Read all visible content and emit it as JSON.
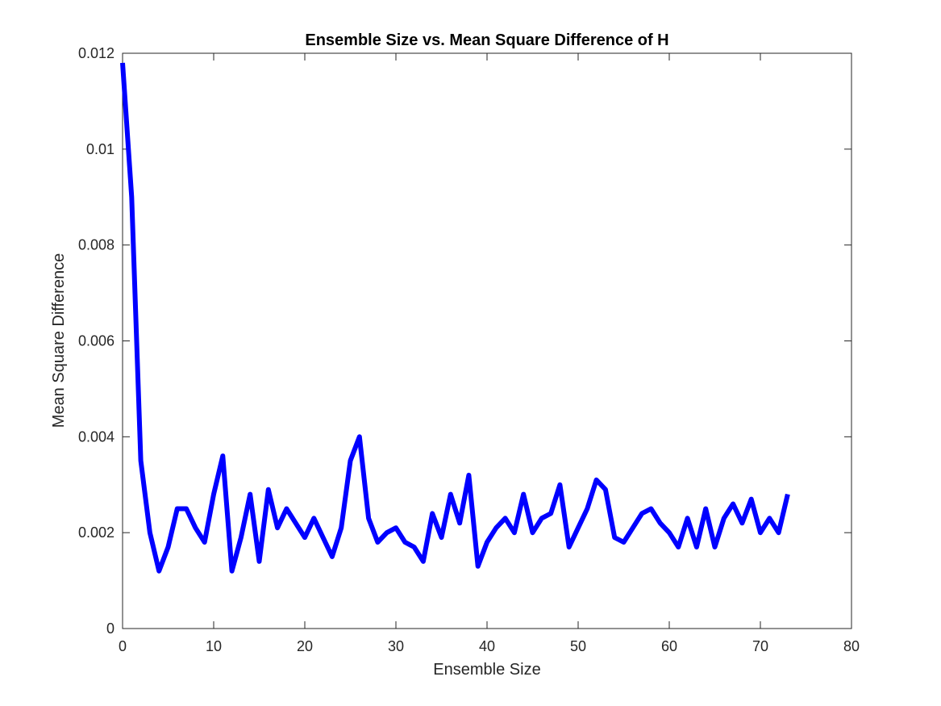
{
  "chart_data": {
    "type": "line",
    "title": "Ensemble Size vs. Mean Square Difference of H",
    "xlabel": "Ensemble Size",
    "ylabel": "Mean Square Difference",
    "xlim": [
      0,
      80
    ],
    "ylim": [
      0,
      0.012
    ],
    "xticks": [
      "0",
      "10",
      "20",
      "30",
      "40",
      "50",
      "60",
      "70",
      "80"
    ],
    "yticks": [
      "0",
      "0.002",
      "0.004",
      "0.006",
      "0.008",
      "0.01",
      "0.012"
    ],
    "grid": false,
    "series": [
      {
        "color": "#0000ff",
        "x": [
          0,
          1,
          2,
          3,
          4,
          5,
          6,
          7,
          8,
          9,
          10,
          11,
          12,
          13,
          14,
          15,
          16,
          17,
          18,
          19,
          20,
          21,
          22,
          23,
          24,
          25,
          26,
          27,
          28,
          29,
          30,
          31,
          32,
          33,
          34,
          35,
          36,
          37,
          38,
          39,
          40,
          41,
          42,
          43,
          44,
          45,
          46,
          47,
          48,
          49,
          50,
          51,
          52,
          53,
          54,
          55,
          56,
          57,
          58,
          59,
          60,
          61,
          62,
          63,
          64,
          65,
          66,
          67,
          68,
          69,
          70,
          71,
          72,
          73
        ],
        "y": [
          0.0118,
          0.009,
          0.0035,
          0.002,
          0.0012,
          0.0017,
          0.0025,
          0.0025,
          0.0021,
          0.0018,
          0.0028,
          0.0036,
          0.0012,
          0.0019,
          0.0028,
          0.0014,
          0.0029,
          0.0021,
          0.0025,
          0.0022,
          0.0019,
          0.0023,
          0.0019,
          0.0015,
          0.0021,
          0.0035,
          0.004,
          0.0023,
          0.0018,
          0.002,
          0.0021,
          0.0018,
          0.0017,
          0.0014,
          0.0024,
          0.0019,
          0.0028,
          0.0022,
          0.0032,
          0.0013,
          0.0018,
          0.0021,
          0.0023,
          0.002,
          0.0028,
          0.002,
          0.0023,
          0.0024,
          0.003,
          0.0017,
          0.0021,
          0.0025,
          0.0031,
          0.0029,
          0.0019,
          0.0018,
          0.0021,
          0.0024,
          0.0025,
          0.0022,
          0.002,
          0.0017,
          0.0023,
          0.0017,
          0.0025,
          0.0017,
          0.0023,
          0.0026,
          0.0022,
          0.0027,
          0.002,
          0.0023,
          0.002,
          0.0028
        ]
      }
    ]
  }
}
